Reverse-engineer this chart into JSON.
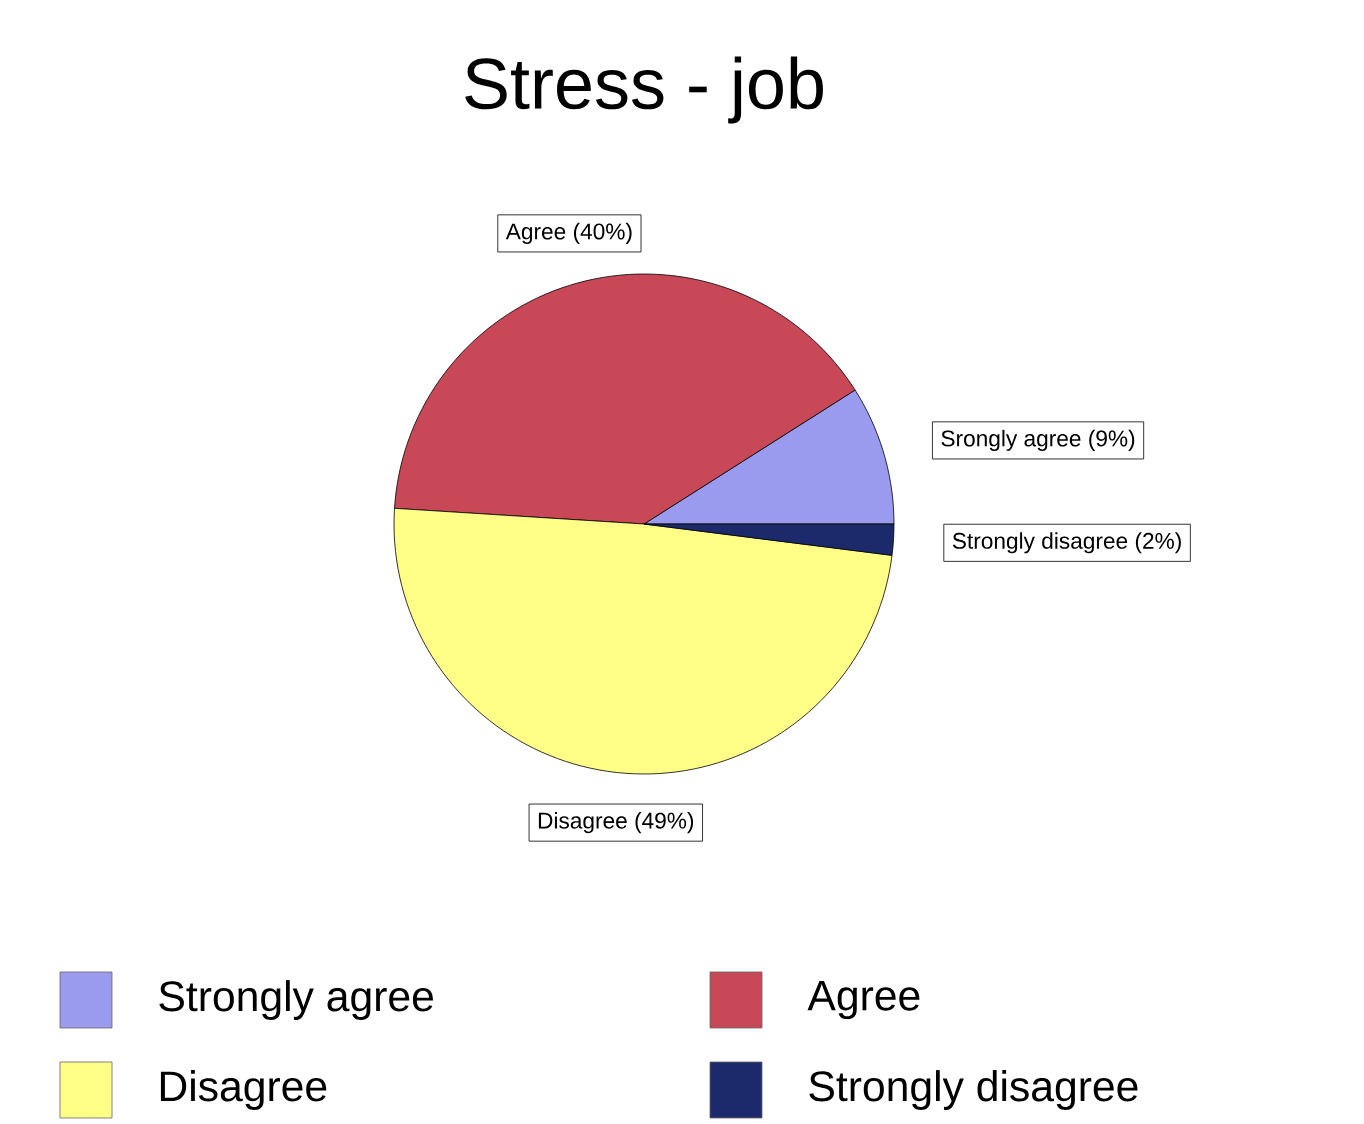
{
  "chart_data": {
    "type": "pie",
    "title": "Stress - job",
    "categories": [
      "Strongly agree",
      "Agree",
      "Disagree",
      "Strongly disagree"
    ],
    "values": [
      9,
      40,
      49,
      2
    ],
    "value_labels": [
      "Srongly agree (9%)",
      "Agree (40%)",
      "Disagree (49%)",
      "Strongly disagree (2%)"
    ],
    "colors": [
      "#9a9aee",
      "#c84858",
      "#ffff88",
      "#1c2a6c"
    ],
    "legend": "bottom"
  }
}
